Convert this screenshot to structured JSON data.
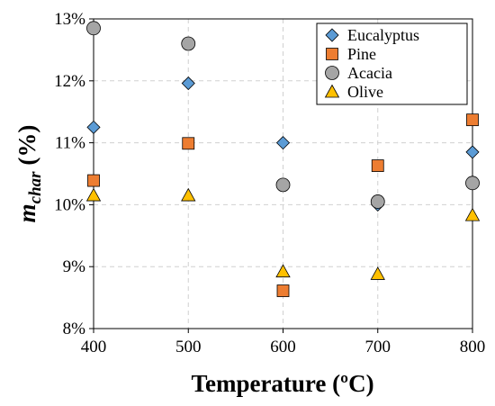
{
  "chart_data": {
    "type": "scatter",
    "xlabel": "Temperature (ºC)",
    "ylabel_main": "m",
    "ylabel_sub": "char",
    "ylabel_suffix": " (%)",
    "xlim": [
      400,
      800
    ],
    "ylim": [
      8,
      13
    ],
    "x_ticks": [
      400,
      500,
      600,
      700,
      800
    ],
    "y_ticks": [
      8,
      9,
      10,
      11,
      12,
      13
    ],
    "y_tick_suffix": "%",
    "grid": true,
    "legend_position": "top-right",
    "series": [
      {
        "name": "Eucalyptus",
        "marker": "diamond",
        "color": "#5b9bd5",
        "points": [
          [
            400,
            11.25
          ],
          [
            500,
            11.96
          ],
          [
            600,
            11.0
          ],
          [
            700,
            10.0
          ],
          [
            800,
            10.85
          ]
        ]
      },
      {
        "name": "Pine",
        "marker": "square",
        "color": "#ed7d31",
        "points": [
          [
            400,
            10.39
          ],
          [
            500,
            10.99
          ],
          [
            600,
            8.61
          ],
          [
            700,
            10.63
          ],
          [
            800,
            11.37
          ]
        ]
      },
      {
        "name": "Acacia",
        "marker": "circle",
        "color": "#a5a5a5",
        "points": [
          [
            400,
            12.85
          ],
          [
            500,
            12.6
          ],
          [
            600,
            10.32
          ],
          [
            700,
            10.05
          ],
          [
            800,
            10.35
          ]
        ]
      },
      {
        "name": "Olive",
        "marker": "triangle",
        "color": "#ffc000",
        "points": [
          [
            400,
            10.15
          ],
          [
            500,
            10.15
          ],
          [
            600,
            8.92
          ],
          [
            700,
            8.88
          ],
          [
            800,
            9.83
          ]
        ]
      }
    ]
  }
}
